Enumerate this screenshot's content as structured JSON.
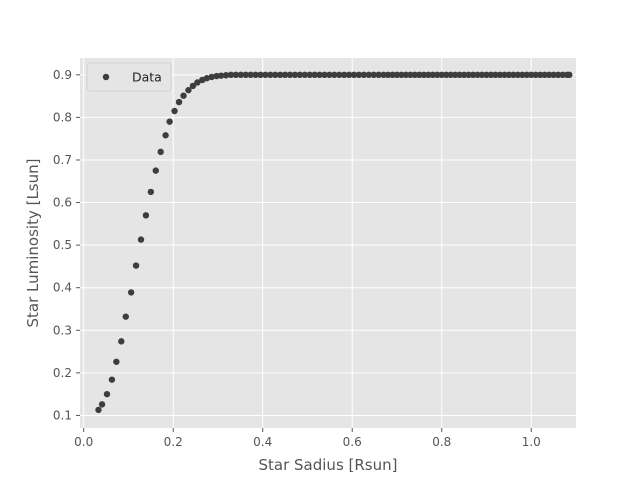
{
  "chart_data": {
    "type": "scatter",
    "title": "",
    "xlabel": "Star Sadius [Rsun]",
    "ylabel": "Star Luminosity [Lsun]",
    "xlim": [
      -0.0083,
      1.1
    ],
    "ylim": [
      0.0705,
      0.9395
    ],
    "xticks": [
      0.0,
      0.2,
      0.4,
      0.6,
      0.8,
      1.0
    ],
    "xtick_labels": [
      "0.0",
      "0.2",
      "0.4",
      "0.6",
      "0.8",
      "1.0"
    ],
    "yticks": [
      0.1,
      0.2,
      0.3,
      0.4,
      0.5,
      0.6,
      0.7,
      0.8,
      0.9
    ],
    "ytick_labels": [
      "0.1",
      "0.2",
      "0.3",
      "0.4",
      "0.5",
      "0.6",
      "0.7",
      "0.8",
      "0.9"
    ],
    "grid": true,
    "legend_position": "top-left",
    "background_color": "#e5e5e5",
    "grid_color": "#ffffff",
    "marker_color": "#3d3d3d",
    "series": [
      {
        "name": "Data",
        "x": [
          0.033,
          0.041,
          0.052,
          0.063,
          0.073,
          0.084,
          0.094,
          0.106,
          0.117,
          0.128,
          0.139,
          0.15,
          0.161,
          0.172,
          0.183,
          0.192,
          0.203,
          0.213,
          0.223,
          0.234,
          0.244,
          0.254,
          0.265,
          0.275,
          0.286,
          0.297,
          0.307,
          0.318,
          0.329,
          0.34,
          0.351,
          0.362,
          0.373,
          0.384,
          0.395,
          0.406,
          0.417,
          0.428,
          0.439,
          0.45,
          0.461,
          0.472,
          0.483,
          0.494,
          0.505,
          0.516,
          0.527,
          0.538,
          0.549,
          0.56,
          0.571,
          0.582,
          0.593,
          0.604,
          0.615,
          0.626,
          0.637,
          0.648,
          0.659,
          0.67,
          0.68,
          0.69,
          0.7,
          0.71,
          0.72,
          0.73,
          0.74,
          0.75,
          0.76,
          0.77,
          0.78,
          0.79,
          0.8,
          0.81,
          0.82,
          0.83,
          0.84,
          0.85,
          0.86,
          0.87,
          0.88,
          0.89,
          0.9,
          0.91,
          0.92,
          0.93,
          0.94,
          0.95,
          0.96,
          0.97,
          0.98,
          0.99,
          1.0,
          1.01,
          1.02,
          1.03,
          1.04,
          1.05,
          1.06,
          1.07,
          1.08,
          1.085
        ],
        "y": [
          0.113,
          0.126,
          0.15,
          0.184,
          0.226,
          0.274,
          0.332,
          0.389,
          0.452,
          0.513,
          0.57,
          0.625,
          0.675,
          0.719,
          0.758,
          0.79,
          0.815,
          0.836,
          0.851,
          0.864,
          0.874,
          0.882,
          0.888,
          0.892,
          0.895,
          0.897,
          0.898,
          0.899,
          0.9,
          0.9,
          0.9,
          0.9,
          0.9,
          0.9,
          0.9,
          0.9,
          0.9,
          0.9,
          0.9,
          0.9,
          0.9,
          0.9,
          0.9,
          0.9,
          0.9,
          0.9,
          0.9,
          0.9,
          0.9,
          0.9,
          0.9,
          0.9,
          0.9,
          0.9,
          0.9,
          0.9,
          0.9,
          0.9,
          0.9,
          0.9,
          0.9,
          0.9,
          0.9,
          0.9,
          0.9,
          0.9,
          0.9,
          0.9,
          0.9,
          0.9,
          0.9,
          0.9,
          0.9,
          0.9,
          0.9,
          0.9,
          0.9,
          0.9,
          0.9,
          0.9,
          0.9,
          0.9,
          0.9,
          0.9,
          0.9,
          0.9,
          0.9,
          0.9,
          0.9,
          0.9,
          0.9,
          0.9,
          0.9,
          0.9,
          0.9,
          0.9,
          0.9,
          0.9,
          0.9,
          0.9,
          0.9,
          0.9
        ]
      }
    ]
  }
}
